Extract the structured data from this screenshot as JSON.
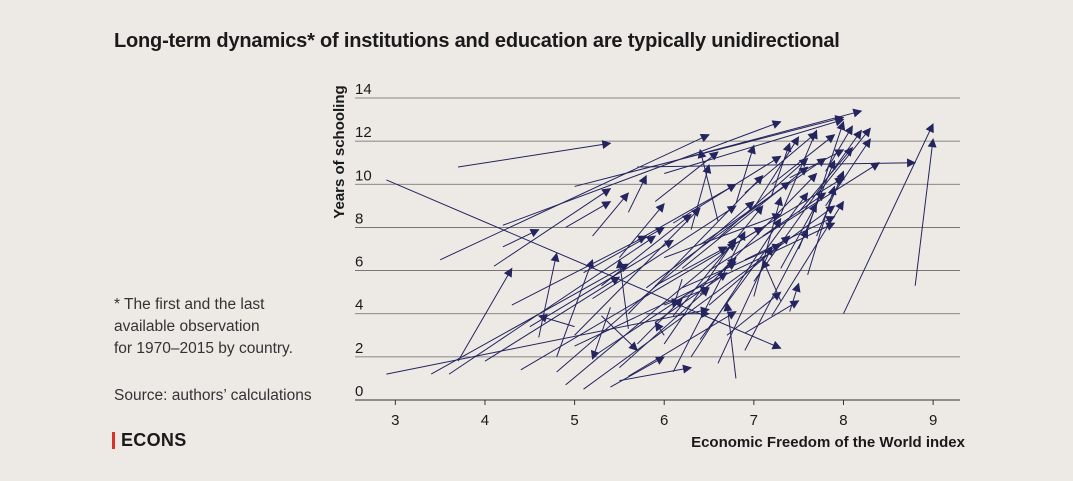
{
  "title": "Long-term dynamics* of institutions and education are typically unidirectional",
  "footnote_lines": [
    "* The first and the last",
    "available observation",
    "for 1970–2015 by country."
  ],
  "source": "Source: authors’ calculations",
  "brand": "ECONS",
  "colors": {
    "background": "#edeae5",
    "arrow": "#24245e",
    "grid": "#666666",
    "brand_accent": "#d9322b"
  },
  "chart_data": {
    "type": "scatter",
    "subtype": "arrows",
    "title": "Long-term dynamics* of institutions and education are typically unidirectional",
    "xlabel": "Economic Freedom of the World index",
    "ylabel": "Years of schooling",
    "xlim": [
      2.55,
      9.3
    ],
    "ylim": [
      0,
      14
    ],
    "xticks": [
      "3",
      "4",
      "5",
      "6",
      "7",
      "8",
      "9"
    ],
    "yticks": [
      "0",
      "2",
      "4",
      "6",
      "8",
      "10",
      "12",
      "14"
    ],
    "grid": "horizontal",
    "series": [
      {
        "arrows": [
          [
            2.9,
            10.2,
            7.3,
            2.4
          ],
          [
            3.7,
            10.8,
            5.4,
            11.9
          ],
          [
            8.8,
            5.3,
            9.0,
            12.1
          ],
          [
            8.0,
            4.0,
            9.0,
            12.8
          ],
          [
            5.7,
            10.8,
            8.8,
            11.0
          ],
          [
            5.0,
            9.9,
            8.0,
            13.1
          ],
          [
            6.3,
            11.3,
            8.2,
            13.4
          ],
          [
            6.0,
            10.5,
            8.0,
            13.0
          ],
          [
            4.2,
            8.1,
            7.3,
            12.9
          ],
          [
            3.5,
            6.5,
            6.5,
            12.3
          ],
          [
            4.1,
            6.2,
            5.4,
            9.8
          ],
          [
            4.2,
            7.1,
            4.6,
            7.9
          ],
          [
            3.7,
            1.8,
            4.3,
            6.1
          ],
          [
            4.0,
            1.8,
            5.5,
            5.7
          ],
          [
            2.9,
            1.2,
            6.5,
            4.2
          ],
          [
            3.4,
            1.2,
            5.6,
            6.3
          ],
          [
            3.6,
            1.2,
            5.9,
            7.6
          ],
          [
            4.4,
            1.4,
            7.1,
            8.0
          ],
          [
            4.8,
            1.3,
            7.0,
            9.2
          ],
          [
            5.1,
            0.5,
            7.9,
            9.0
          ],
          [
            4.9,
            0.7,
            6.8,
            7.3
          ],
          [
            5.0,
            2.5,
            7.9,
            8.2
          ],
          [
            5.2,
            2.0,
            6.8,
            6.4
          ],
          [
            5.5,
            1.5,
            6.5,
            5.2
          ],
          [
            5.5,
            0.9,
            6.3,
            1.5
          ],
          [
            5.4,
            0.6,
            6.0,
            2.0
          ],
          [
            5.6,
            1.1,
            6.8,
            4.1
          ],
          [
            5.7,
            2.6,
            6.2,
            4.7
          ],
          [
            5.9,
            3.6,
            6.7,
            5.9
          ],
          [
            6.0,
            4.4,
            6.5,
            5.2
          ],
          [
            6.2,
            5.2,
            7.3,
            7.2
          ],
          [
            6.4,
            4.9,
            6.8,
            6.6
          ],
          [
            6.6,
            5.8,
            7.7,
            10.5
          ],
          [
            6.5,
            6.0,
            8.4,
            11.0
          ],
          [
            7.0,
            5.5,
            8.2,
            12.5
          ],
          [
            6.6,
            7.5,
            7.6,
            11.2
          ],
          [
            6.7,
            3.0,
            7.3,
            5.0
          ],
          [
            6.8,
            1.0,
            6.7,
            4.5
          ],
          [
            5.8,
            4.0,
            6.5,
            4.0
          ],
          [
            6.2,
            5.6,
            6.1,
            4.3
          ],
          [
            4.6,
            2.9,
            4.8,
            6.8
          ],
          [
            4.8,
            2.0,
            5.2,
            6.5
          ],
          [
            5.0,
            3.4,
            4.6,
            3.9
          ],
          [
            5.6,
            3.3,
            5.5,
            6.5
          ],
          [
            6.0,
            2.6,
            6.8,
            7.5
          ],
          [
            6.1,
            3.9,
            7.1,
            9.0
          ],
          [
            6.4,
            2.8,
            7.6,
            9.6
          ],
          [
            5.9,
            5.3,
            6.7,
            7.1
          ],
          [
            6.3,
            7.9,
            6.5,
            10.9
          ],
          [
            6.6,
            8.3,
            6.4,
            11.6
          ],
          [
            6.8,
            9.1,
            7.0,
            11.8
          ],
          [
            7.0,
            8.9,
            7.5,
            12.2
          ],
          [
            7.3,
            8.6,
            7.7,
            12.5
          ],
          [
            7.6,
            7.9,
            8.0,
            12.9
          ],
          [
            7.2,
            3.9,
            8.0,
            9.2
          ],
          [
            6.9,
            3.1,
            7.5,
            4.6
          ],
          [
            6.0,
            3.0,
            5.9,
            3.6
          ],
          [
            5.3,
            3.9,
            5.7,
            2.3
          ],
          [
            5.4,
            4.3,
            5.2,
            1.9
          ],
          [
            6.5,
            4.4,
            7.4,
            7.6
          ],
          [
            5.3,
            5.3,
            6.3,
            8.6
          ],
          [
            5.1,
            5.9,
            6.0,
            8.0
          ],
          [
            5.5,
            6.6,
            6.0,
            9.1
          ],
          [
            5.7,
            7.4,
            6.8,
            10.0
          ],
          [
            6.1,
            8.2,
            7.3,
            11.3
          ],
          [
            5.9,
            9.2,
            6.6,
            11.5
          ],
          [
            6.9,
            9.6,
            7.7,
            12.4
          ],
          [
            7.2,
            10.0,
            7.9,
            12.3
          ],
          [
            7.4,
            10.3,
            8.0,
            11.6
          ],
          [
            7.5,
            7.0,
            7.9,
            11.1
          ],
          [
            7.7,
            9.5,
            8.3,
            12.6
          ],
          [
            7.8,
            10.6,
            8.1,
            12.7
          ],
          [
            4.3,
            4.4,
            5.8,
            7.6
          ],
          [
            4.5,
            3.4,
            6.1,
            7.4
          ],
          [
            5.0,
            3.0,
            6.4,
            8.9
          ],
          [
            5.2,
            4.7,
            6.8,
            9.0
          ],
          [
            5.6,
            4.0,
            7.1,
            10.4
          ],
          [
            5.8,
            5.2,
            7.4,
            10.1
          ],
          [
            6.2,
            6.1,
            7.6,
            10.8
          ],
          [
            6.0,
            6.6,
            7.3,
            8.6
          ],
          [
            6.4,
            7.2,
            7.8,
            11.2
          ],
          [
            6.7,
            7.0,
            8.0,
            10.3
          ],
          [
            6.9,
            6.5,
            7.9,
            8.5
          ],
          [
            7.1,
            7.6,
            7.8,
            9.6
          ],
          [
            7.3,
            6.1,
            7.7,
            9.1
          ],
          [
            5.2,
            7.6,
            5.6,
            9.6
          ],
          [
            4.9,
            8.0,
            5.4,
            9.2
          ],
          [
            5.6,
            8.7,
            5.8,
            10.4
          ],
          [
            6.1,
            1.3,
            6.9,
            7.8
          ],
          [
            6.3,
            2.0,
            7.3,
            8.4
          ],
          [
            6.6,
            1.7,
            7.2,
            7.1
          ],
          [
            6.9,
            2.3,
            7.6,
            7.9
          ],
          [
            7.4,
            4.1,
            7.5,
            5.4
          ],
          [
            7.3,
            4.6,
            7.1,
            6.5
          ],
          [
            7.0,
            4.8,
            7.3,
            9.4
          ],
          [
            7.6,
            5.8,
            7.9,
            9.9
          ],
          [
            7.7,
            7.6,
            8.0,
            10.6
          ],
          [
            7.5,
            8.7,
            8.1,
            11.7
          ],
          [
            7.8,
            9.0,
            8.3,
            12.1
          ],
          [
            7.2,
            9.5,
            7.4,
            11.9
          ]
        ]
      }
    ]
  }
}
